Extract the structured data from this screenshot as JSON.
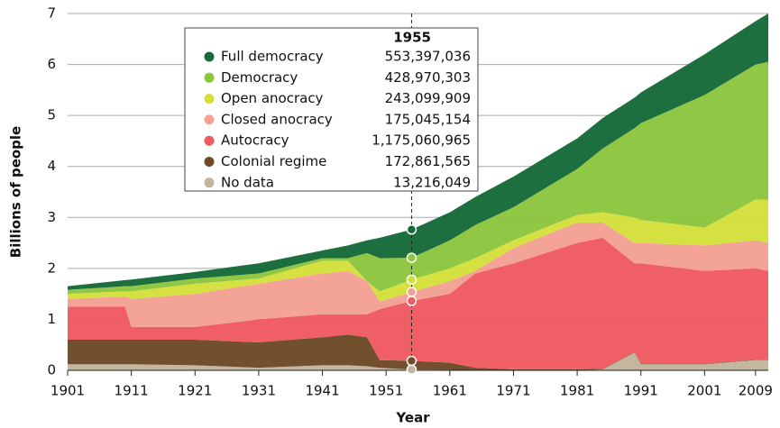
{
  "chart_data": {
    "type": "stacked_area",
    "x_label": "Year",
    "y_label": "Billions of people",
    "x": [
      1901,
      1910,
      1911,
      1921,
      1931,
      1941,
      1945,
      1948,
      1950,
      1955,
      1961,
      1965,
      1971,
      1981,
      1985,
      1990,
      1991,
      2001,
      2009,
      2011
    ],
    "series": [
      {
        "name": "Full democracy",
        "color": "#176a3a",
        "values": [
          0.07,
          0.12,
          0.13,
          0.13,
          0.2,
          0.15,
          0.25,
          0.25,
          0.4,
          0.553397036,
          0.55,
          0.55,
          0.6,
          0.6,
          0.6,
          0.6,
          0.6,
          0.8,
          0.85,
          0.95
        ]
      },
      {
        "name": "Democracy",
        "color": "#8cc63f",
        "values": [
          0.08,
          0.1,
          0.1,
          0.1,
          0.1,
          0.05,
          0.05,
          0.55,
          0.65,
          0.428970303,
          0.55,
          0.65,
          0.65,
          0.9,
          1.25,
          1.75,
          1.9,
          2.6,
          2.65,
          2.7
        ]
      },
      {
        "name": "Open anocracy",
        "color": "#d4e03a",
        "values": [
          0.1,
          0.1,
          0.15,
          0.2,
          0.1,
          0.25,
          0.2,
          0,
          0.2,
          0.243099909,
          0.25,
          0.25,
          0.15,
          0.15,
          0.2,
          0.5,
          0.45,
          0.35,
          0.8,
          0.85
        ]
      },
      {
        "name": "Closed anocracy",
        "color": "#f4a193",
        "values": [
          0.15,
          0.2,
          0.55,
          0.65,
          0.7,
          0.8,
          0.85,
          0.65,
          0.15,
          0.175045154,
          0.25,
          0.05,
          0.3,
          0.4,
          0.3,
          0.4,
          0.4,
          0.5,
          0.55,
          0.55
        ]
      },
      {
        "name": "Autocracy",
        "color": "#ef5a60",
        "values": [
          0.65,
          0.65,
          0.25,
          0.25,
          0.45,
          0.45,
          0.4,
          0.45,
          1.0,
          1.175060965,
          1.35,
          1.85,
          2.08,
          2.48,
          2.57,
          1.74,
          1.97,
          1.82,
          1.79,
          1.74
        ]
      },
      {
        "name": "Colonial regime",
        "color": "#6e4a26",
        "values": [
          0.48,
          0.48,
          0.48,
          0.5,
          0.5,
          0.55,
          0.6,
          0.57,
          0.15,
          0.172861565,
          0.14,
          0.05,
          0.02,
          0.02,
          0.01,
          0.01,
          0.01,
          0.01,
          0.01,
          0.01
        ]
      },
      {
        "name": "No data",
        "color": "#c2b49c",
        "values": [
          0.12,
          0.12,
          0.12,
          0.1,
          0.05,
          0.1,
          0.1,
          0.08,
          0.05,
          0.013216049,
          0.01,
          0,
          0,
          0,
          0.02,
          0.35,
          0.12,
          0.12,
          0.2,
          0.2
        ]
      }
    ],
    "xlim": [
      1901,
      2011
    ],
    "xticks": [
      1901,
      1911,
      1921,
      1931,
      1941,
      1951,
      1961,
      1971,
      1981,
      1991,
      2001,
      2009
    ],
    "ylim": [
      0,
      7
    ],
    "yticks": [
      0,
      1,
      2,
      3,
      4,
      5,
      6,
      7
    ],
    "grid": true,
    "tooltip": {
      "x": 1955,
      "values": [
        0.553397036,
        0.428970303,
        0.243099909,
        0.175045154,
        1.175060965,
        0.172861565,
        0.013216049
      ],
      "value_labels": [
        "553,397,036",
        "428,970,303",
        "243,099,909",
        "175,045,154",
        "1,175,060,965",
        "172,861,565",
        "13,216,049"
      ]
    }
  }
}
